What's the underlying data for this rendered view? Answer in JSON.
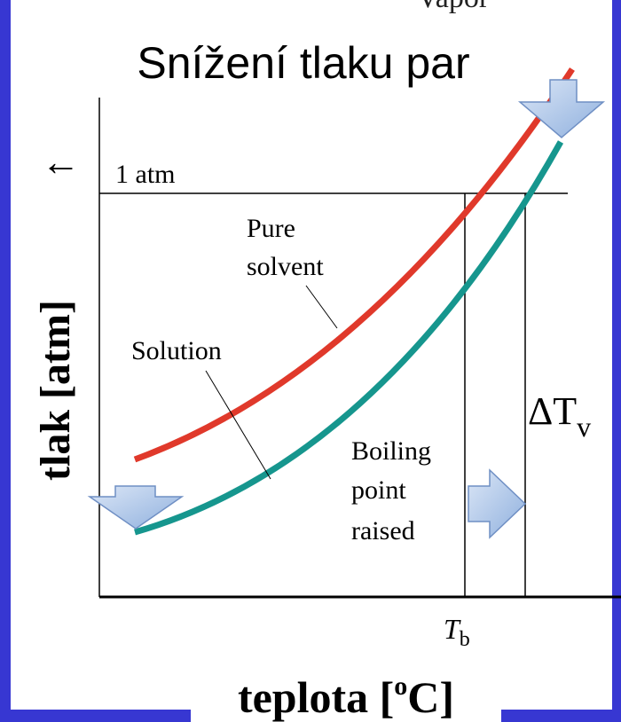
{
  "title": "Snížení tlaku par",
  "top_clipped_label": "Vapor",
  "reference_line_label": "1 atm",
  "curve_labels": {
    "pure_solvent": [
      "Pure",
      "solvent"
    ],
    "solution": "Solution"
  },
  "boiling_label": [
    "Boiling",
    "point",
    "raised"
  ],
  "delta_label": {
    "main": "ΔT",
    "sub": "v"
  },
  "tb_label": {
    "main": "T",
    "sub": "b"
  },
  "y_axis_label": "tlak [atm]",
  "y_axis_arrow": "↑",
  "x_axis_label": {
    "main": "teplota [",
    "sup": "o",
    "rest": "C]"
  }
}
